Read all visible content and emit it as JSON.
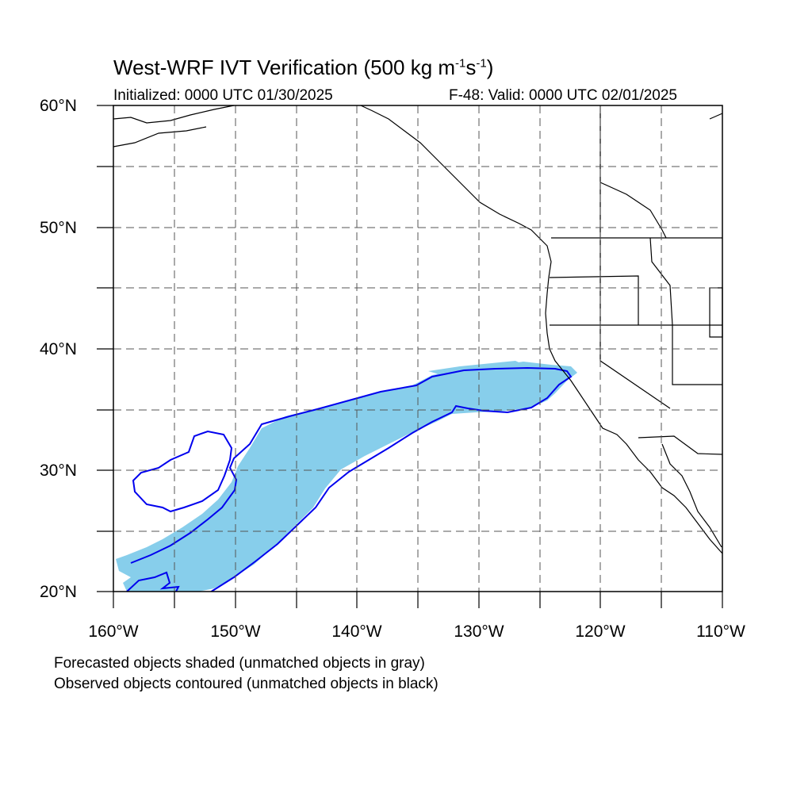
{
  "figure": {
    "title_main": "West-WRF IVT Verification (500 kg m",
    "title_sup1": "-1",
    "title_mid": "s",
    "title_sup2": "-1",
    "title_end": ")",
    "initialized": "Initialized: 0000 UTC 01/30/2025",
    "valid": "F-48: Valid: 0000 UTC 02/01/2025",
    "note_forecast": "Forecasted objects shaded (unmatched objects in gray)",
    "note_observed": "Observed objects contoured (unmatched objects in black)"
  },
  "map": {
    "projection": "lat-lon",
    "lon_range": [
      -160,
      -110
    ],
    "lat_range": [
      20,
      60
    ],
    "grid": "dashed every 5 degrees",
    "lat_labels": [
      "60°N",
      "50°N",
      "40°N",
      "30°N",
      "20°N"
    ],
    "lon_labels": [
      "160°W",
      "150°W",
      "140°W",
      "130°W",
      "120°W",
      "110°W"
    ],
    "colors": {
      "forecast_fill": "#87ceeb",
      "observed_contour": "#0000ee",
      "coastline": "#000000",
      "grid": "#555555"
    },
    "objects": [
      {
        "type": "forecast-shaded",
        "description_region": "atmospheric river from ~-159,22 to ~-122,38"
      },
      {
        "type": "observed-contour",
        "description_region": "atmospheric river from ~-158,20 to ~-122,38"
      }
    ]
  }
}
